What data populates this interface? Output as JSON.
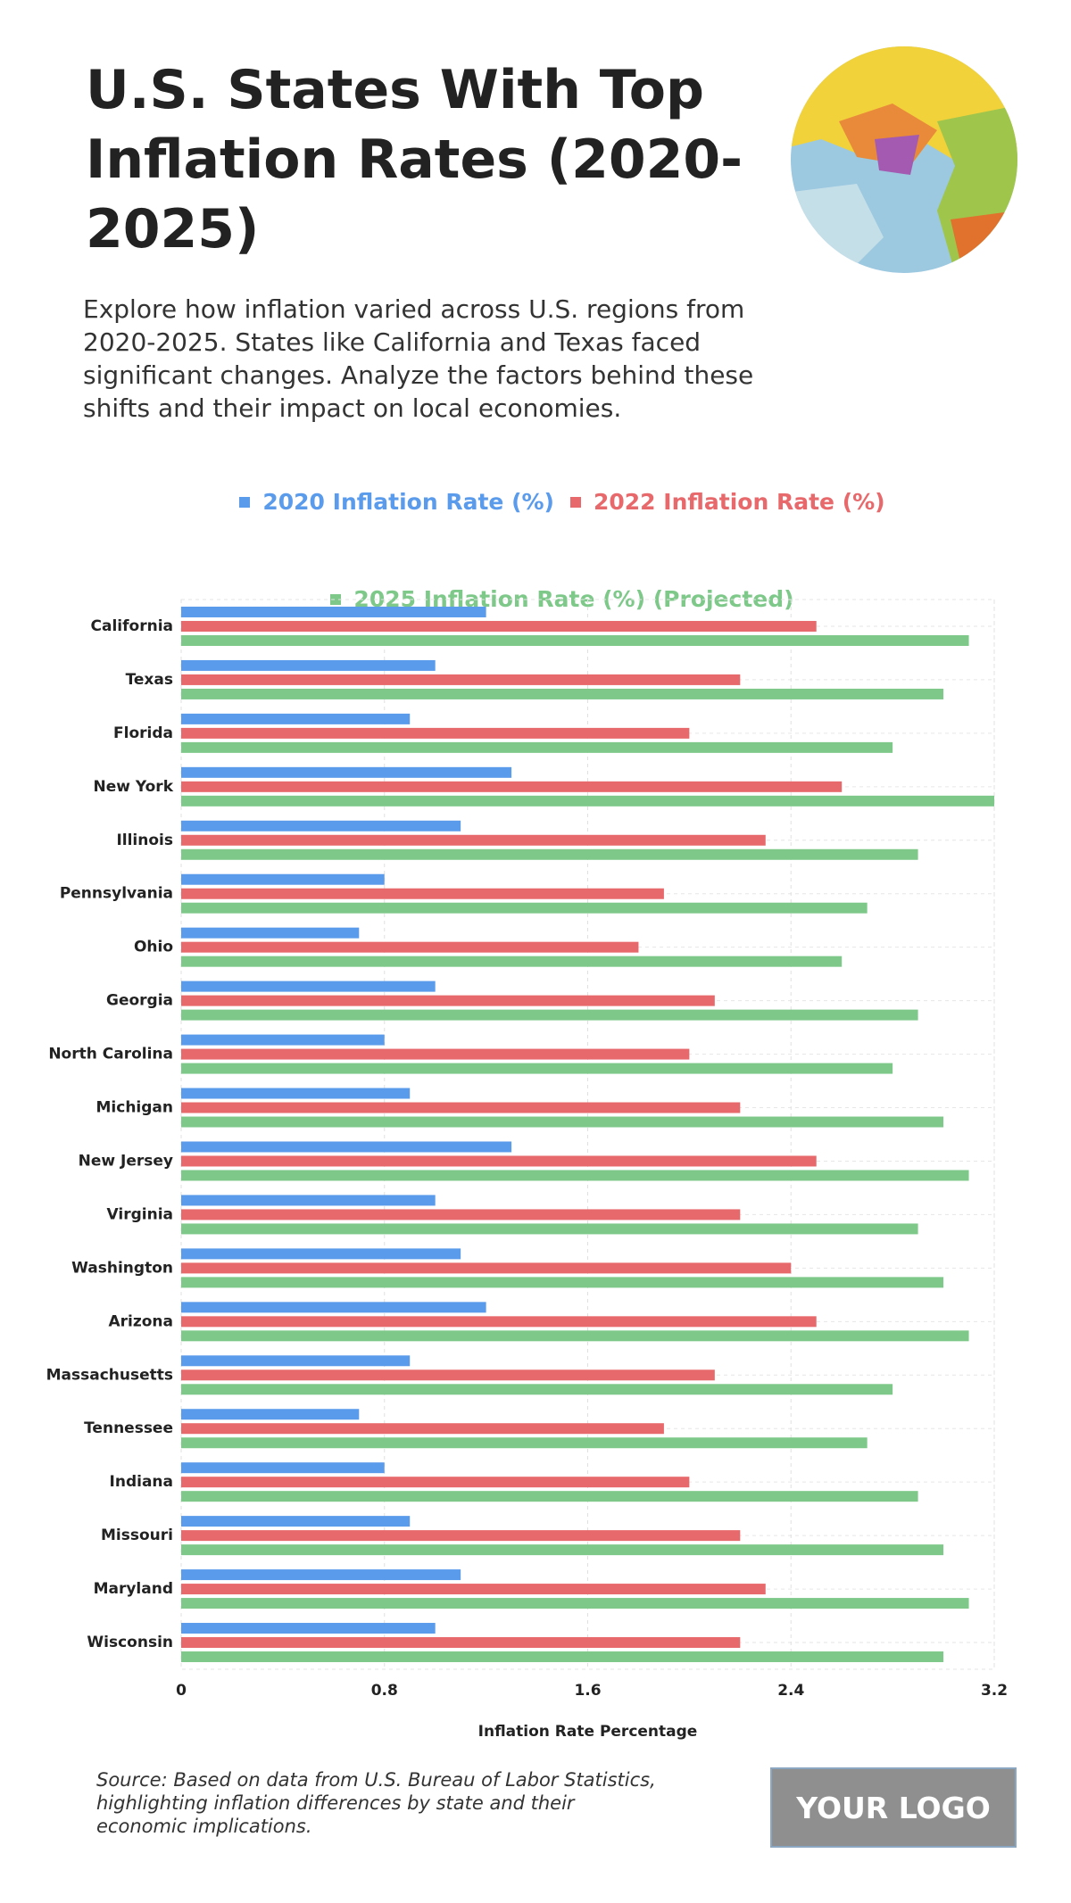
{
  "header": {
    "title": "U.S. States With Top Inflation Rates (2020-2025)",
    "subtitle": "Explore how inflation varied across U.S. regions from 2020-2025. States like California and Texas faced significant changes. Analyze the factors behind these shifts and their impact on local economies."
  },
  "chart_data": {
    "type": "bar",
    "orientation": "horizontal",
    "categories": [
      "California",
      "Texas",
      "Florida",
      "New York",
      "Illinois",
      "Pennsylvania",
      "Ohio",
      "Georgia",
      "North Carolina",
      "Michigan",
      "New Jersey",
      "Virginia",
      "Washington",
      "Arizona",
      "Massachusetts",
      "Tennessee",
      "Indiana",
      "Missouri",
      "Maryland",
      "Wisconsin"
    ],
    "series": [
      {
        "name": "2020 Inflation Rate (%)",
        "color": "#5b9bec",
        "values": [
          1.2,
          1.0,
          0.9,
          1.3,
          1.1,
          0.8,
          0.7,
          1.0,
          0.8,
          0.9,
          1.3,
          1.0,
          1.1,
          1.2,
          0.9,
          0.7,
          0.8,
          0.9,
          1.1,
          1.0
        ]
      },
      {
        "name": "2022 Inflation Rate (%)",
        "color": "#e8696b",
        "values": [
          2.5,
          2.2,
          2.0,
          2.6,
          2.3,
          1.9,
          1.8,
          2.1,
          2.0,
          2.2,
          2.5,
          2.2,
          2.4,
          2.5,
          2.1,
          1.9,
          2.0,
          2.2,
          2.3,
          2.2
        ]
      },
      {
        "name": "2025 Inflation Rate (%) (Projected)",
        "color": "#7ec98a",
        "values": [
          3.1,
          3.0,
          2.8,
          3.2,
          2.9,
          2.7,
          2.6,
          2.9,
          2.8,
          3.0,
          3.1,
          2.9,
          3.0,
          3.1,
          2.8,
          2.7,
          2.9,
          3.0,
          3.1,
          3.0
        ]
      }
    ],
    "xlim": [
      0,
      3.2
    ],
    "xticks": [
      0,
      0.8,
      1.6,
      2.4,
      3.2
    ],
    "x_label": "Inflation Rate Percentage",
    "grid": true,
    "legend": "top"
  },
  "footer": {
    "source": "Source: Based on data from U.S. Bureau of Labor Statistics, highlighting inflation differences by state and their economic implications.",
    "logo": "YOUR LOGO"
  }
}
